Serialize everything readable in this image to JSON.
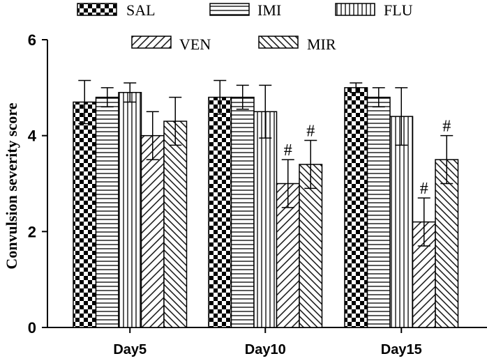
{
  "chart_data": {
    "type": "bar",
    "ylabel": "Convulsion severity score",
    "xlabel": "",
    "ylim": [
      0,
      6
    ],
    "yticks": [
      0,
      2,
      4,
      6
    ],
    "categories": [
      "Day5",
      "Day10",
      "Day15"
    ],
    "series": [
      {
        "name": "SAL",
        "pattern": "checker",
        "values": [
          4.7,
          4.8,
          5.0
        ],
        "errors": [
          0.45,
          0.35,
          0.1
        ],
        "annotations": [
          "",
          "",
          ""
        ]
      },
      {
        "name": "IMI",
        "pattern": "horizontal",
        "values": [
          4.8,
          4.8,
          4.8
        ],
        "errors": [
          0.2,
          0.25,
          0.2
        ],
        "annotations": [
          "",
          "",
          ""
        ]
      },
      {
        "name": "FLU",
        "pattern": "vertical",
        "values": [
          4.9,
          4.5,
          4.4
        ],
        "errors": [
          0.2,
          0.55,
          0.6
        ],
        "annotations": [
          "",
          "",
          ""
        ]
      },
      {
        "name": "VEN",
        "pattern": "diag-up",
        "values": [
          4.0,
          3.0,
          2.2
        ],
        "errors": [
          0.5,
          0.5,
          0.5
        ],
        "annotations": [
          "",
          "#",
          "#"
        ]
      },
      {
        "name": "MIR",
        "pattern": "diag-down",
        "values": [
          4.3,
          3.4,
          3.5
        ],
        "errors": [
          0.5,
          0.5,
          0.5
        ],
        "annotations": [
          "",
          "#",
          "#"
        ]
      }
    ],
    "grid": false,
    "legend_position": "top",
    "colors": {
      "bar_stroke": "#000000",
      "fill": "#ffffff",
      "pattern": "#000000"
    }
  }
}
